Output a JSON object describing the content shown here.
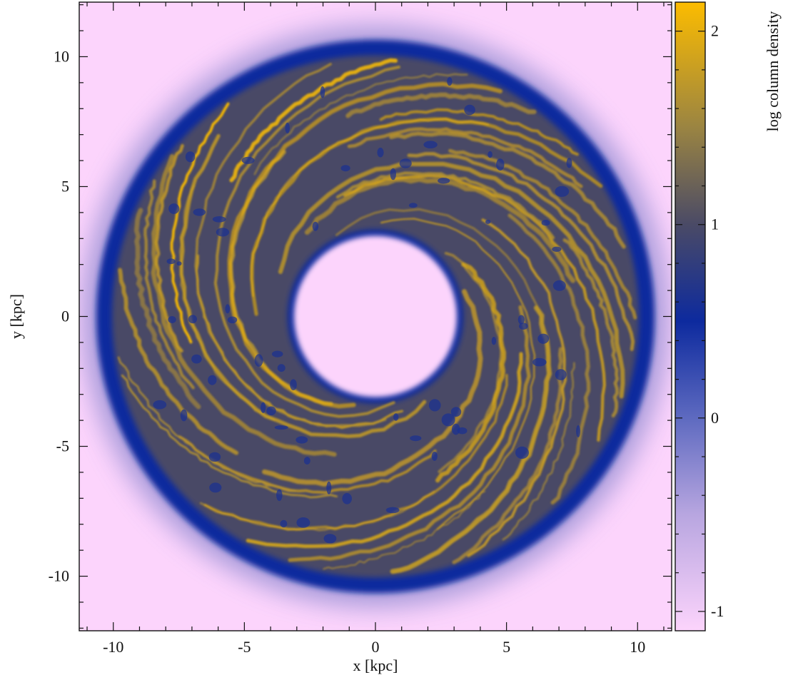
{
  "chart_data": {
    "type": "heatmap",
    "title": "",
    "xlabel": "x [kpc]",
    "ylabel": "y [kpc]",
    "xlim": [
      -11.3,
      11.3
    ],
    "ylim": [
      -12.1,
      12.1
    ],
    "xticks": [
      -10,
      -5,
      0,
      5,
      10
    ],
    "yticks": [
      -10,
      -5,
      0,
      5,
      10
    ],
    "grid": false,
    "colorbar": {
      "label": "log column density",
      "range": [
        -1.1,
        2.15
      ],
      "ticks": [
        -1,
        0,
        1,
        2
      ],
      "colormap": [
        {
          "value": -1.1,
          "color": "#fcd4fc"
        },
        {
          "value": -0.5,
          "color": "#b8a6e0"
        },
        {
          "value": 0.0,
          "color": "#5e6ac0"
        },
        {
          "value": 0.5,
          "color": "#0d2a9e"
        },
        {
          "value": 1.0,
          "color": "#4a4a66"
        },
        {
          "value": 1.5,
          "color": "#9a8442"
        },
        {
          "value": 2.15,
          "color": "#fcbc00"
        }
      ]
    },
    "structure": {
      "shape": "ring",
      "center": [
        0,
        0
      ],
      "inner_radius_kpc": 3.1,
      "outer_radius_kpc": 10.3,
      "diffuse_halo_radius_kpc": 12.0,
      "spiral_arms": "many tightly wound gas filaments",
      "log_density_background": -1.1,
      "log_density_edge": 0.5,
      "log_density_arms": 2.1
    }
  }
}
